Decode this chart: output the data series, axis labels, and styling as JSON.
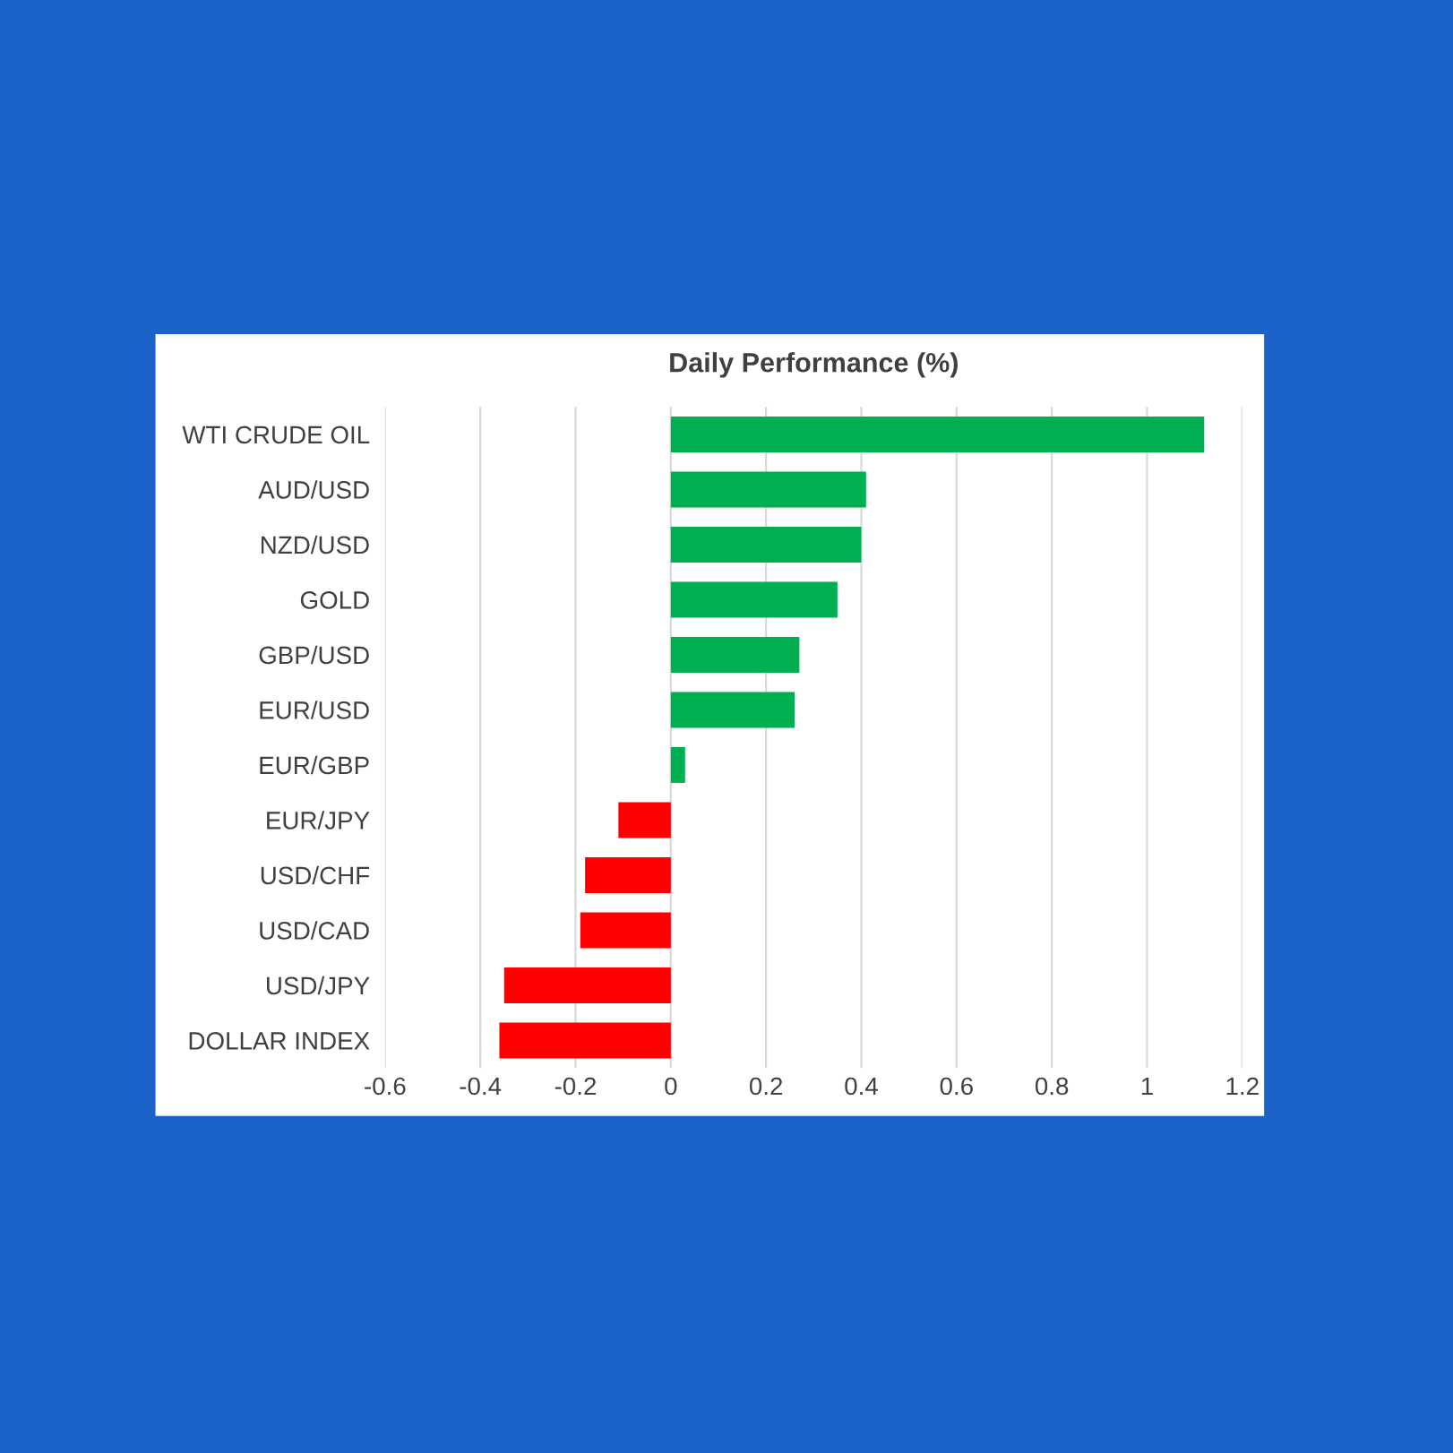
{
  "chart_data": {
    "type": "bar",
    "orientation": "horizontal",
    "title": "Daily Performance (%)",
    "categories": [
      "WTI CRUDE OIL",
      "AUD/USD",
      "NZD/USD",
      "GOLD",
      "GBP/USD",
      "EUR/USD",
      "EUR/GBP",
      "EUR/JPY",
      "USD/CHF",
      "USD/CAD",
      "USD/JPY",
      "DOLLAR INDEX"
    ],
    "values": [
      1.12,
      0.41,
      0.4,
      0.35,
      0.27,
      0.26,
      0.03,
      -0.11,
      -0.18,
      -0.19,
      -0.35,
      -0.36
    ],
    "colors": [
      "#00b050",
      "#00b050",
      "#00b050",
      "#00b050",
      "#00b050",
      "#00b050",
      "#00b050",
      "#ff0000",
      "#ff0000",
      "#ff0000",
      "#ff0000",
      "#ff0000"
    ],
    "xlim": [
      -0.6,
      1.2
    ],
    "xticks": [
      -0.6,
      -0.4,
      -0.2,
      0,
      0.2,
      0.4,
      0.6,
      0.8,
      1,
      1.2
    ],
    "grid": "x"
  }
}
